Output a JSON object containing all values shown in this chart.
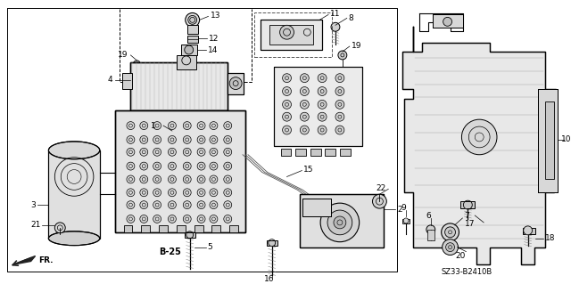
{
  "bg_color": "#ffffff",
  "line_color": "#000000",
  "label_color": "#000000",
  "ref_code": "SZ33-B2410B",
  "page_ref": "B-25",
  "figsize": [
    6.4,
    3.19
  ],
  "dpi": 100
}
